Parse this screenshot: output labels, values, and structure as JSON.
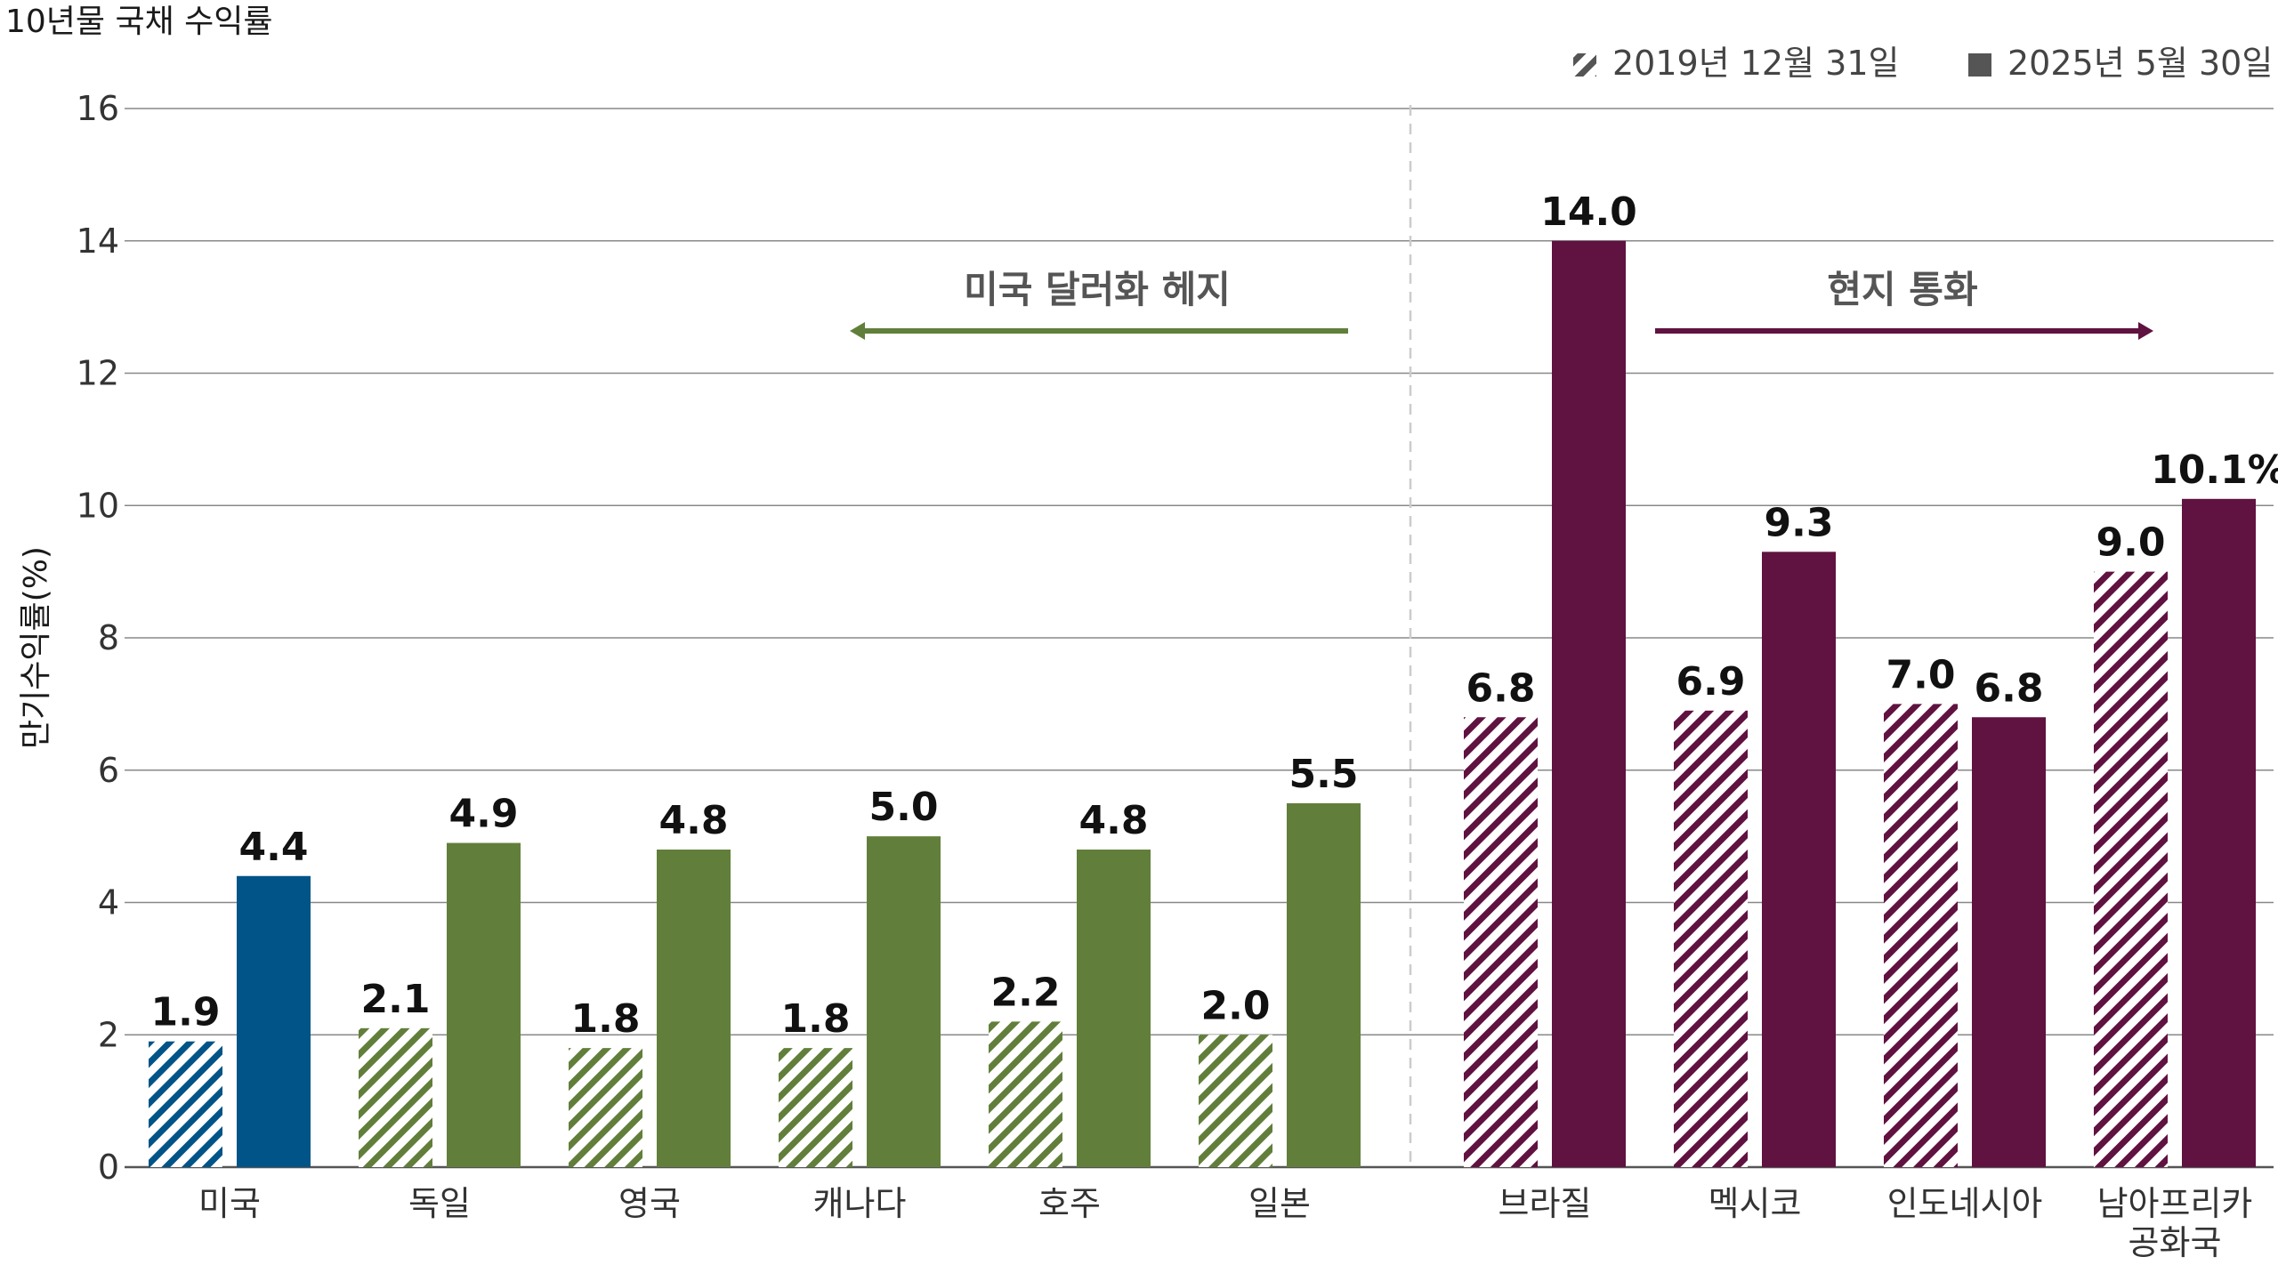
{
  "chart_data": {
    "type": "bar",
    "title": "10년물 국채 수익률",
    "ylabel": "만기수익률(%)",
    "ylim": [
      0,
      16
    ],
    "yticks": [
      0,
      2,
      4,
      6,
      8,
      10,
      12,
      14,
      16
    ],
    "grid": true,
    "legend_position": "top-right",
    "categories": [
      "미국",
      "독일",
      "영국",
      "캐나다",
      "호주",
      "일본",
      "브라질",
      "멕시코",
      "인도네시아",
      "남아프리카 공화국"
    ],
    "category_lines": [
      [
        "미국"
      ],
      [
        "독일"
      ],
      [
        "영국"
      ],
      [
        "캐나다"
      ],
      [
        "호주"
      ],
      [
        "일본"
      ],
      [
        "브라질"
      ],
      [
        "멕시코"
      ],
      [
        "인도네시아"
      ],
      [
        "남아프리카",
        "공화국"
      ]
    ],
    "series": [
      {
        "name": "2019년 12월 31일",
        "pattern": "hatched",
        "values": [
          1.9,
          2.1,
          1.8,
          1.8,
          2.2,
          2.0,
          6.8,
          6.9,
          7.0,
          9.0
        ]
      },
      {
        "name": "2025년 5월 30일",
        "pattern": "solid",
        "values": [
          4.4,
          4.9,
          4.8,
          5.0,
          4.8,
          5.5,
          14.0,
          9.3,
          6.8,
          10.1
        ]
      }
    ],
    "value_labels": [
      [
        "1.9",
        "2.1",
        "1.8",
        "1.8",
        "2.2",
        "2.0",
        "6.8",
        "6.9",
        "7.0",
        "9.0"
      ],
      [
        "4.4",
        "4.9",
        "4.8",
        "5.0",
        "4.8",
        "5.5",
        "14.0",
        "9.3",
        "6.8",
        "10.1%"
      ]
    ],
    "bar_colors": [
      "#005487",
      "#617f3a",
      "#617f3a",
      "#617f3a",
      "#617f3a",
      "#617f3a",
      "#601240",
      "#601240",
      "#601240",
      "#601240"
    ],
    "legend_swatch_color": "#555555",
    "annotations": {
      "left": {
        "text": "미국 달러화 헤지",
        "color": "#617f3a",
        "direction": "left"
      },
      "right": {
        "text": "현지 통화",
        "color": "#601240",
        "direction": "right"
      }
    }
  }
}
